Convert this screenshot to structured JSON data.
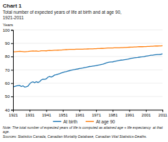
{
  "chart_data": {
    "type": "line",
    "title": "Chart 1",
    "subtitle": [
      "Total number of expected years of life at birth and at age 90,",
      "1921-2011"
    ],
    "y_label": "Years",
    "annotations": [
      "Note: The total number of expected years of life is computed as attained age + life expectancy  at that age.",
      "Sources: Statistics Canada, Canadian Mortality Database, Canadian Vital Statistics-Deaths."
    ],
    "x": [
      1921,
      1922,
      1923,
      1924,
      1925,
      1926,
      1927,
      1928,
      1929,
      1930,
      1931,
      1932,
      1933,
      1934,
      1935,
      1936,
      1937,
      1938,
      1939,
      1940,
      1941,
      1942,
      1943,
      1944,
      1945,
      1946,
      1947,
      1948,
      1949,
      1950,
      1951,
      1952,
      1953,
      1954,
      1955,
      1956,
      1957,
      1958,
      1959,
      1960,
      1961,
      1962,
      1963,
      1964,
      1965,
      1966,
      1967,
      1968,
      1969,
      1970,
      1971,
      1972,
      1973,
      1974,
      1975,
      1976,
      1977,
      1978,
      1979,
      1980,
      1981,
      1982,
      1983,
      1984,
      1985,
      1986,
      1987,
      1988,
      1989,
      1990,
      1991,
      1992,
      1993,
      1994,
      1995,
      1996,
      1997,
      1998,
      1999,
      2000,
      2001,
      2002,
      2003,
      2004,
      2005,
      2006,
      2007,
      2008,
      2009,
      2010,
      2011
    ],
    "series": [
      {
        "name": "At birth",
        "values": [
          57.1,
          57.5,
          57.9,
          58.2,
          58.3,
          57.5,
          58.0,
          57.1,
          57.3,
          57.8,
          59.5,
          60.6,
          61.0,
          60.3,
          61.1,
          60.5,
          61.1,
          62.4,
          63.0,
          62.9,
          63.2,
          64.5,
          65.0,
          64.6,
          65.2,
          66.1,
          66.4,
          66.8,
          67.1,
          67.6,
          68.0,
          68.4,
          68.7,
          69.1,
          69.4,
          69.7,
          70.0,
          70.2,
          70.5,
          70.7,
          71.0,
          71.2,
          71.4,
          71.7,
          71.9,
          72.2,
          72.5,
          72.6,
          72.8,
          73.0,
          73.2,
          73.5,
          73.7,
          74.0,
          74.3,
          74.7,
          75.2,
          75.5,
          75.8,
          75.9,
          76.0,
          76.3,
          76.6,
          76.9,
          77.1,
          77.3,
          77.4,
          77.6,
          77.8,
          78.0,
          78.3,
          78.6,
          78.8,
          79.0,
          79.2,
          79.3,
          79.5,
          79.7,
          79.8,
          80.0,
          80.3,
          80.5,
          80.7,
          81.0,
          81.0,
          81.2,
          81.4,
          81.5,
          81.5,
          81.7,
          82.0
        ]
      },
      {
        "name": "At age 90",
        "values": [
          83.5,
          83.6,
          83.7,
          83.8,
          83.9,
          83.8,
          83.7,
          83.6,
          83.7,
          83.8,
          84.0,
          84.1,
          84.2,
          84.1,
          84.2,
          84.0,
          84.1,
          84.3,
          84.4,
          84.4,
          84.3,
          84.5,
          84.6,
          84.5,
          84.6,
          84.7,
          84.7,
          84.8,
          84.9,
          84.9,
          85.0,
          85.1,
          85.2,
          85.3,
          85.4,
          85.4,
          85.4,
          85.4,
          85.5,
          85.5,
          85.5,
          85.5,
          85.5,
          85.6,
          85.6,
          85.7,
          85.8,
          85.8,
          85.8,
          85.9,
          85.9,
          86.0,
          86.0,
          86.1,
          86.1,
          86.2,
          86.3,
          86.4,
          86.4,
          86.4,
          86.4,
          86.5,
          86.5,
          86.6,
          86.6,
          86.7,
          86.7,
          86.8,
          86.8,
          86.9,
          87.0,
          87.1,
          87.1,
          87.2,
          87.2,
          87.3,
          87.4,
          87.4,
          87.4,
          87.5,
          87.5,
          87.6,
          87.6,
          87.7,
          87.7,
          87.8,
          87.9,
          87.9,
          88.0,
          88.0,
          88.1
        ]
      }
    ],
    "xlim": [
      1921,
      2011
    ],
    "xticks": [
      1921,
      1931,
      1941,
      1951,
      1961,
      1971,
      1981,
      1991,
      2001,
      2011
    ],
    "ylim": [
      40,
      100
    ],
    "yticks": [
      40,
      50,
      60,
      70,
      80,
      90,
      100
    ],
    "grid": "y",
    "legend": "bottom"
  }
}
